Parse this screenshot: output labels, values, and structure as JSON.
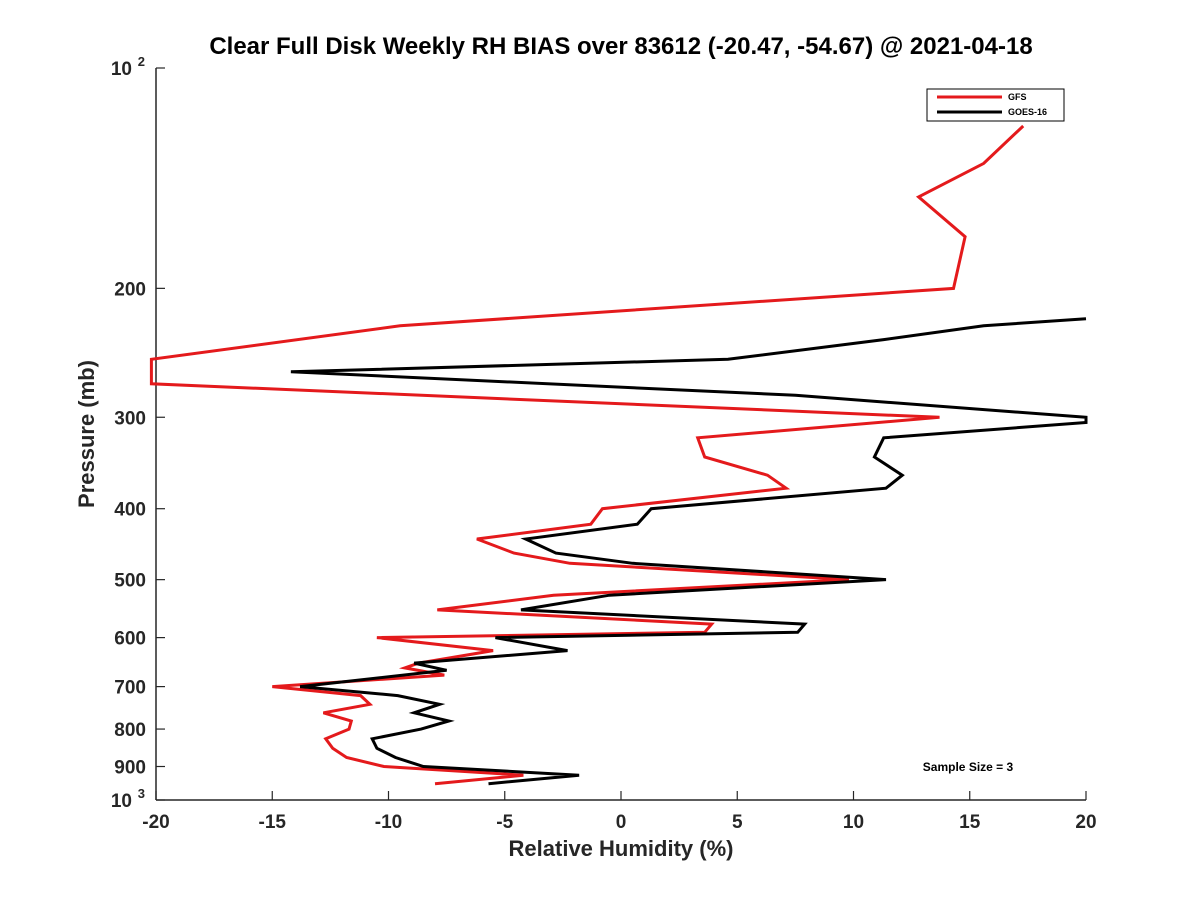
{
  "chart_data": {
    "type": "line",
    "title": "Clear Full Disk Weekly RH BIAS over 83612 (-20.47, -54.67) @ 2021-04-18",
    "xlabel": "Relative Humidity (%)",
    "ylabel": "Pressure (mb)",
    "xlim": [
      -20,
      20
    ],
    "ylim": [
      100,
      1000
    ],
    "yscale": "log",
    "y_reversed": true,
    "grid": false,
    "legend_position": "top-right",
    "annotation": "Sample Size = 3",
    "xticks": [
      {
        "value": -20,
        "label": "-20"
      },
      {
        "value": -15,
        "label": "-15"
      },
      {
        "value": -10,
        "label": "-10"
      },
      {
        "value": -5,
        "label": "-5"
      },
      {
        "value": 0,
        "label": "0"
      },
      {
        "value": 5,
        "label": "5"
      },
      {
        "value": 10,
        "label": "10"
      },
      {
        "value": 15,
        "label": "15"
      },
      {
        "value": 20,
        "label": "20"
      }
    ],
    "yticks": [
      {
        "value": 100,
        "label": "10",
        "sup": "2"
      },
      {
        "value": 200,
        "label": "200"
      },
      {
        "value": 300,
        "label": "300"
      },
      {
        "value": 400,
        "label": "400"
      },
      {
        "value": 500,
        "label": "500"
      },
      {
        "value": 600,
        "label": "600"
      },
      {
        "value": 700,
        "label": "700"
      },
      {
        "value": 800,
        "label": "800"
      },
      {
        "value": 900,
        "label": "900"
      },
      {
        "value": 1000,
        "label": "10",
        "sup": "3"
      }
    ],
    "series": [
      {
        "name": "GFS",
        "color": "#e41a1c",
        "points": [
          [
            17.3,
            120
          ],
          [
            15.6,
            135
          ],
          [
            12.8,
            150
          ],
          [
            14.8,
            170
          ],
          [
            14.3,
            200
          ],
          [
            -9.5,
            225
          ],
          [
            -20.2,
            250
          ],
          [
            -20.2,
            270
          ],
          [
            13.7,
            300
          ],
          [
            3.3,
            320
          ],
          [
            3.6,
            340
          ],
          [
            6.3,
            360
          ],
          [
            7.1,
            375
          ],
          [
            -0.8,
            400
          ],
          [
            -1.3,
            420
          ],
          [
            -6.2,
            440
          ],
          [
            -4.6,
            460
          ],
          [
            -2.2,
            475
          ],
          [
            9.8,
            500
          ],
          [
            -2.9,
            525
          ],
          [
            -7.9,
            550
          ],
          [
            3.9,
            575
          ],
          [
            3.6,
            590
          ],
          [
            -10.5,
            600
          ],
          [
            -5.5,
            625
          ],
          [
            -8.7,
            650
          ],
          [
            -9.3,
            660
          ],
          [
            -7.6,
            675
          ],
          [
            -15.0,
            700
          ],
          [
            -11.2,
            720
          ],
          [
            -10.8,
            740
          ],
          [
            -12.8,
            760
          ],
          [
            -11.6,
            780
          ],
          [
            -11.7,
            800
          ],
          [
            -12.7,
            825
          ],
          [
            -12.4,
            850
          ],
          [
            -11.8,
            875
          ],
          [
            -10.2,
            900
          ],
          [
            -4.2,
            925
          ],
          [
            -8.0,
            950
          ]
        ]
      },
      {
        "name": "GOES-16",
        "color": "#000000",
        "points": [
          [
            20.0,
            220
          ],
          [
            15.6,
            225
          ],
          [
            11.3,
            235
          ],
          [
            4.6,
            250
          ],
          [
            -14.2,
            260
          ],
          [
            7.5,
            280
          ],
          [
            20.0,
            300
          ],
          [
            20.0,
            305
          ],
          [
            11.3,
            320
          ],
          [
            10.9,
            340
          ],
          [
            12.1,
            360
          ],
          [
            11.4,
            375
          ],
          [
            1.3,
            400
          ],
          [
            0.7,
            420
          ],
          [
            -4.1,
            440
          ],
          [
            -2.8,
            460
          ],
          [
            0.5,
            475
          ],
          [
            11.4,
            500
          ],
          [
            -0.5,
            525
          ],
          [
            -4.3,
            550
          ],
          [
            7.9,
            575
          ],
          [
            7.6,
            590
          ],
          [
            -5.4,
            600
          ],
          [
            -2.3,
            625
          ],
          [
            -8.9,
            650
          ],
          [
            -7.5,
            665
          ],
          [
            -13.8,
            700
          ],
          [
            -9.6,
            720
          ],
          [
            -7.8,
            740
          ],
          [
            -8.9,
            760
          ],
          [
            -7.4,
            780
          ],
          [
            -8.6,
            800
          ],
          [
            -10.7,
            825
          ],
          [
            -10.5,
            850
          ],
          [
            -9.7,
            875
          ],
          [
            -8.5,
            900
          ],
          [
            -1.8,
            925
          ],
          [
            -5.7,
            950
          ]
        ]
      }
    ]
  }
}
